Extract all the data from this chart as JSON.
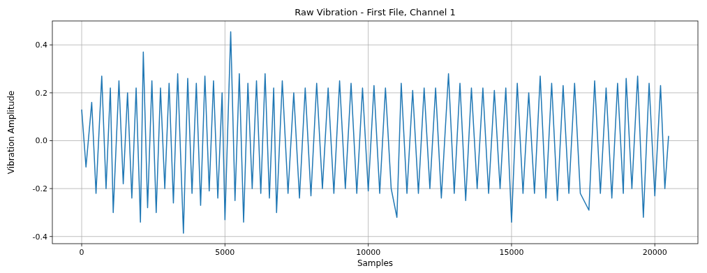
{
  "chart_data": {
    "type": "line",
    "title": "Raw Vibration - First File, Channel 1",
    "xlabel": "Samples",
    "ylabel": "Vibration Amplitude",
    "xlim": [
      -1024,
      21504
    ],
    "ylim": [
      -0.43,
      0.5
    ],
    "xticks": [
      0,
      5000,
      10000,
      15000,
      20000
    ],
    "yticks": [
      -0.4,
      -0.2,
      {
        "value": 0,
        "label": "0.0"
      },
      0.2,
      0.4
    ],
    "grid": true,
    "series": [
      {
        "color": "#1f77b4",
        "x": [
          0,
          150,
          350,
          500,
          700,
          850,
          1000,
          1100,
          1300,
          1450,
          1600,
          1750,
          1900,
          2050,
          2150,
          2300,
          2450,
          2600,
          2750,
          2900,
          3050,
          3200,
          3350,
          3550,
          3700,
          3850,
          4000,
          4150,
          4300,
          4450,
          4600,
          4750,
          4900,
          5000,
          5200,
          5350,
          5500,
          5650,
          5800,
          5950,
          6100,
          6250,
          6400,
          6550,
          6700,
          6800,
          7000,
          7200,
          7400,
          7600,
          7800,
          8000,
          8200,
          8400,
          8600,
          8800,
          9000,
          9200,
          9400,
          9600,
          9800,
          10000,
          10200,
          10400,
          10600,
          10800,
          11000,
          11150,
          11350,
          11550,
          11750,
          11950,
          12150,
          12350,
          12550,
          12800,
          13000,
          13200,
          13400,
          13600,
          13800,
          14000,
          14200,
          14400,
          14600,
          14800,
          15000,
          15200,
          15400,
          15600,
          15800,
          16000,
          16200,
          16400,
          16600,
          16800,
          17000,
          17200,
          17400,
          17700,
          17900,
          18100,
          18300,
          18500,
          18700,
          18900,
          19000,
          19200,
          19400,
          19600,
          19800,
          20000,
          20200,
          20350,
          20480
        ],
        "values": [
          0.13,
          -0.11,
          0.16,
          -0.22,
          0.27,
          -0.2,
          0.22,
          -0.3,
          0.25,
          -0.18,
          0.2,
          -0.24,
          0.22,
          -0.34,
          0.37,
          -0.28,
          0.25,
          -0.3,
          0.22,
          -0.2,
          0.24,
          -0.26,
          0.28,
          -0.386,
          0.26,
          -0.22,
          0.24,
          -0.27,
          0.27,
          -0.21,
          0.25,
          -0.24,
          0.2,
          -0.33,
          0.455,
          -0.25,
          0.28,
          -0.34,
          0.24,
          -0.2,
          0.25,
          -0.22,
          0.28,
          -0.24,
          0.22,
          -0.3,
          0.25,
          -0.22,
          0.2,
          -0.24,
          0.22,
          -0.23,
          0.24,
          -0.2,
          0.22,
          -0.22,
          0.25,
          -0.2,
          0.24,
          -0.22,
          0.22,
          -0.21,
          0.23,
          -0.22,
          0.22,
          -0.2,
          -0.32,
          0.24,
          -0.22,
          0.21,
          -0.22,
          0.22,
          -0.2,
          0.22,
          -0.24,
          0.28,
          -0.22,
          0.24,
          -0.25,
          0.22,
          -0.2,
          0.22,
          -0.22,
          0.21,
          -0.2,
          0.22,
          -0.34,
          0.24,
          -0.22,
          0.2,
          -0.22,
          0.27,
          -0.24,
          0.24,
          -0.25,
          0.23,
          -0.22,
          0.24,
          -0.22,
          -0.29,
          0.25,
          -0.22,
          0.22,
          -0.24,
          0.24,
          -0.22,
          0.26,
          -0.2,
          0.27,
          -0.32,
          0.24,
          -0.23,
          0.23,
          -0.2,
          0.02
        ]
      }
    ]
  }
}
